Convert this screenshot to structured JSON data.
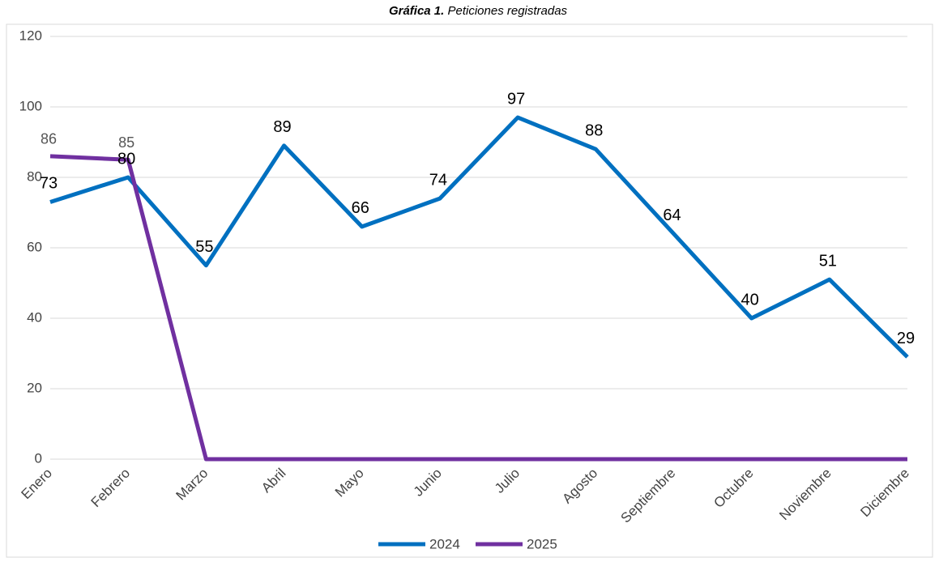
{
  "chart_data": {
    "type": "line",
    "title_prefix": "Gráfica 1.",
    "title": "Peticiones registradas",
    "categories": [
      "Enero",
      "Febrero",
      "Marzo",
      "Abril",
      "Mayo",
      "Junio",
      "Julio",
      "Agosto",
      "Septiembre",
      "Octubre",
      "Noviembre",
      "Diciembre"
    ],
    "series": [
      {
        "name": "2024",
        "color": "#0070c0",
        "values": [
          73,
          80,
          55,
          89,
          66,
          74,
          97,
          88,
          64,
          40,
          51,
          29
        ]
      },
      {
        "name": "2025",
        "color": "#7030a0",
        "values": [
          86,
          85,
          0,
          0,
          0,
          0,
          0,
          0,
          0,
          0,
          0,
          0
        ],
        "value_labels": [
          "86",
          "85",
          null,
          null,
          null,
          null,
          null,
          null,
          null,
          null,
          null,
          null
        ]
      }
    ],
    "ylim": [
      0,
      120
    ],
    "yticks": [
      0,
      20,
      40,
      60,
      80,
      100,
      120
    ],
    "grid": true,
    "legend": "bottom"
  }
}
